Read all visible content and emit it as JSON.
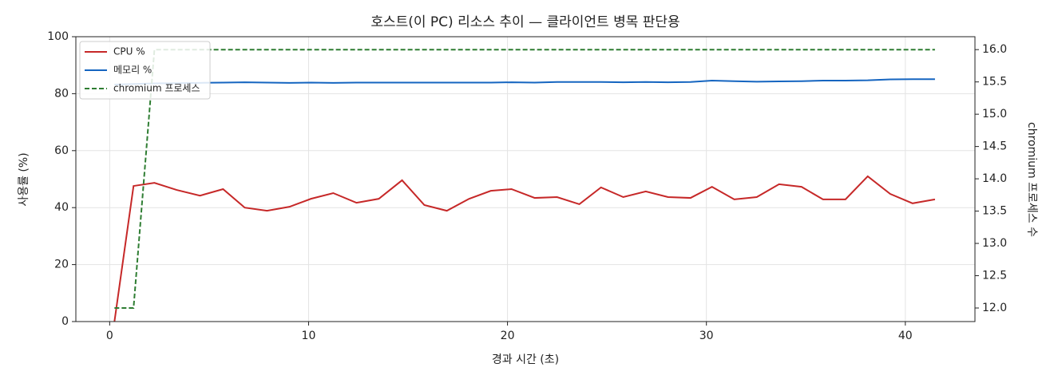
{
  "chart_data": {
    "type": "line",
    "title": "호스트(이 PC) 리소스 추이 — 클라이언트 병목 판단용",
    "xlabel": "경과 시간 (초)",
    "ylabel": "사용률 (%)",
    "y2label": "chromium 프로세스 수",
    "x": [
      0.24,
      1.2,
      2.25,
      3.37,
      4.54,
      5.7,
      6.79,
      7.91,
      9.04,
      10.12,
      11.24,
      12.41,
      13.53,
      14.7,
      15.82,
      16.95,
      18.07,
      19.16,
      20.2,
      21.37,
      22.49,
      23.61,
      24.7,
      25.82,
      26.95,
      28.07,
      29.2,
      30.28,
      31.4,
      32.53,
      33.65,
      34.78,
      35.86,
      36.99,
      38.11,
      39.24,
      40.36,
      41.49
    ],
    "series": [
      {
        "name": "CPU %",
        "color": "#c62828",
        "dash": false,
        "values": [
          0,
          47.6,
          48.7,
          46.2,
          44.2,
          46.5,
          40,
          38.9,
          40.3,
          43.1,
          45.1,
          41.7,
          43.1,
          49.6,
          40.9,
          38.9,
          43.1,
          45.9,
          46.5,
          43.4,
          43.7,
          41.2,
          47.1,
          43.7,
          45.7,
          43.7,
          43.4,
          47.3,
          42.9,
          43.7,
          48.2,
          47.3,
          42.9,
          42.9,
          51,
          44.8,
          41.5,
          42.9
        ]
      },
      {
        "name": "메모리 %",
        "color": "#1565c0",
        "dash": false,
        "values": [
          83.2,
          83.4,
          83.6,
          83.7,
          83.8,
          83.9,
          84,
          83.9,
          83.8,
          83.9,
          83.8,
          83.9,
          83.9,
          83.9,
          83.9,
          83.9,
          83.9,
          83.9,
          84,
          83.9,
          84.1,
          84.1,
          84.1,
          84,
          84.1,
          84,
          84.1,
          84.6,
          84.4,
          84.2,
          84.3,
          84.4,
          84.6,
          84.6,
          84.7,
          85,
          85.1,
          85.1
        ]
      },
      {
        "name": "chromium 프로세스",
        "color": "#2e7d32",
        "dash": true,
        "axis": "y2",
        "values": [
          12,
          12,
          16,
          16,
          16,
          16,
          16,
          16,
          16,
          16,
          16,
          16,
          16,
          16,
          16,
          16,
          16,
          16,
          16,
          16,
          16,
          16,
          16,
          16,
          16,
          16,
          16,
          16,
          16,
          16,
          16,
          16,
          16,
          16,
          16,
          16,
          16,
          16
        ]
      }
    ],
    "xlim": [
      -1.7,
      43.5
    ],
    "xticks": [
      0,
      10,
      20,
      30,
      40
    ],
    "ylim": [
      0,
      100
    ],
    "yticks": [
      0,
      20,
      40,
      60,
      80,
      100
    ],
    "y2lim": [
      11.79,
      16.2
    ],
    "y2ticks": [
      {
        "value": 12,
        "label": "12.0"
      },
      {
        "value": 12.5,
        "label": "12.5"
      },
      {
        "value": 13,
        "label": "13.0"
      },
      {
        "value": 13.5,
        "label": "13.5"
      },
      {
        "value": 14,
        "label": "14.0"
      },
      {
        "value": 14.5,
        "label": "14.5"
      },
      {
        "value": 15,
        "label": "15.0"
      },
      {
        "value": 15.5,
        "label": "15.5"
      },
      {
        "value": 16,
        "label": "16.0"
      }
    ],
    "grid": true,
    "legend": "upper-left"
  }
}
